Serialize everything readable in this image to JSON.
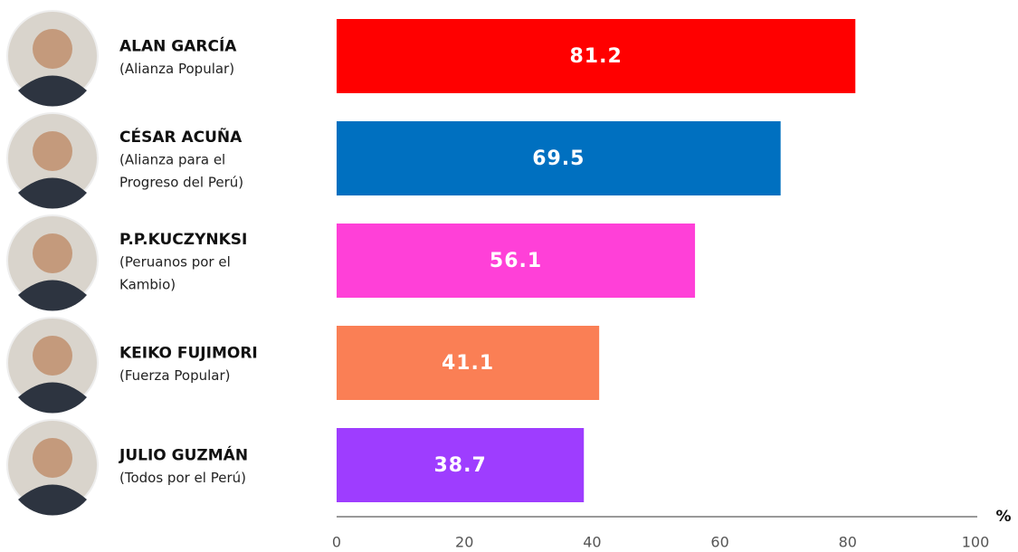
{
  "chart_data": {
    "type": "bar",
    "categories": [
      "ALAN GARCÍA",
      "CÉSAR ACUÑA",
      "P.P.KUCZYNKSI",
      "KEIKO FUJIMORI",
      "JULIO GUZMÁN"
    ],
    "parties": [
      [
        "(Alianza Popular)"
      ],
      [
        "(Alianza para el",
        "Progreso del Perú)"
      ],
      [
        "(Peruanos por el",
        "Kambio)"
      ],
      [
        "(Fuerza Popular)"
      ],
      [
        "(Todos por el Perú)"
      ]
    ],
    "values": [
      81.2,
      69.5,
      56.1,
      41.1,
      38.7
    ],
    "colors": [
      "#ff0000",
      "#0070c0",
      "#ff40d8",
      "#fa7f55",
      "#9e3dff"
    ],
    "x_label": "%",
    "xlim": [
      0,
      100
    ],
    "xticks": [
      0,
      20,
      40,
      60,
      80,
      100
    ]
  }
}
